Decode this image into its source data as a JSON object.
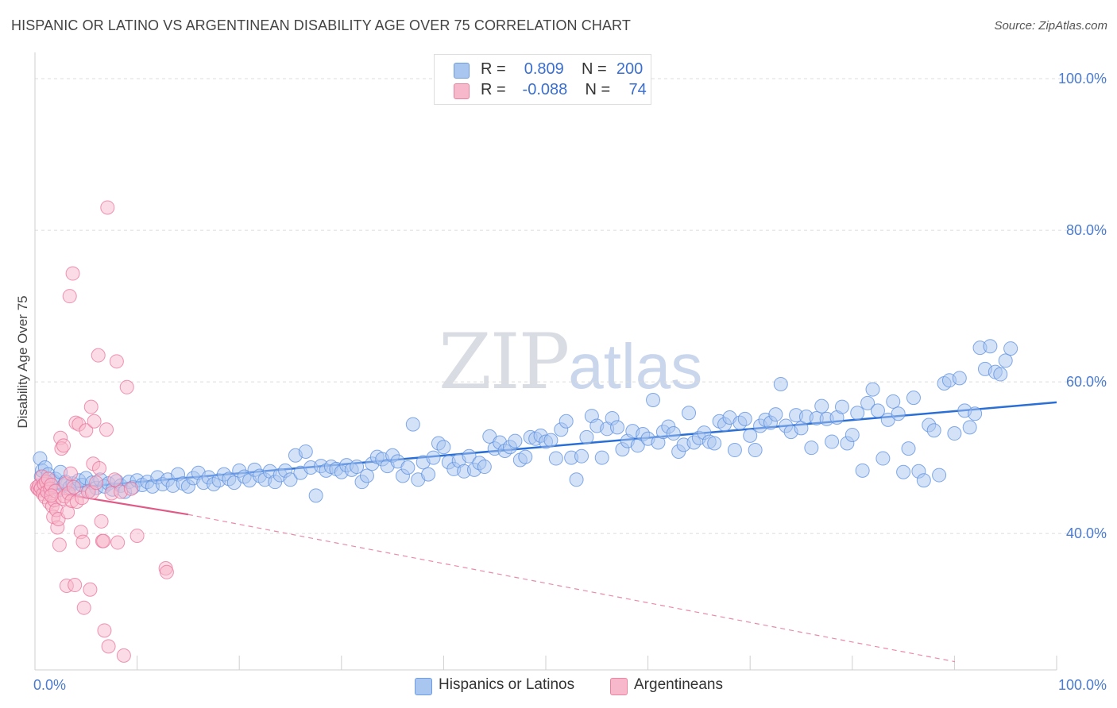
{
  "title": "HISPANIC OR LATINO VS ARGENTINEAN DISABILITY AGE OVER 75 CORRELATION CHART",
  "source": "Source: ZipAtlas.com",
  "watermark": {
    "zip": "ZIP",
    "atlas": "atlas"
  },
  "legend": {
    "rows": [
      {
        "r_label": "R =",
        "r_value": "0.809",
        "n_label": "N =",
        "n_value": "200",
        "color": "#a9c6f0"
      },
      {
        "r_label": "R =",
        "r_value": "-0.088",
        "n_label": "N =",
        "n_value": "74",
        "color": "#f7b8cb"
      }
    ]
  },
  "bottom_legend": [
    {
      "label": "Hispanics or Latinos",
      "color": "#a9c6f0"
    },
    {
      "label": "Argentineans",
      "color": "#f7b8cb"
    }
  ],
  "chart_data": {
    "type": "scatter",
    "xlabel": "",
    "ylabel": "Disability Age Over 75",
    "xlim": [
      0,
      100
    ],
    "ylim": [
      22,
      102
    ],
    "x_tick_labels": [
      "0.0%",
      "100.0%"
    ],
    "y_ticks": [
      40,
      60,
      80,
      100
    ],
    "y_tick_labels": [
      "40.0%",
      "60.0%",
      "80.0%",
      "100.0%"
    ],
    "grid": true,
    "series": [
      {
        "name": "Hispanics or Latinos",
        "color": "#5b8fe0",
        "fill": "#a9c6f0",
        "trend": {
          "x": [
            0,
            100
          ],
          "y": [
            45.6,
            57.3
          ],
          "extrapolated": false
        },
        "points": [
          [
            0.5,
            49.9
          ],
          [
            0.6,
            47.5
          ],
          [
            0.7,
            48.3
          ],
          [
            0.8,
            46.2
          ],
          [
            1.0,
            48.7
          ],
          [
            1.1,
            45.8
          ],
          [
            1.3,
            47.8
          ],
          [
            1.5,
            46.5
          ],
          [
            1.8,
            46.9
          ],
          [
            2.0,
            47.2
          ],
          [
            2.3,
            45.7
          ],
          [
            2.5,
            48.1
          ],
          [
            2.8,
            46.3
          ],
          [
            3.0,
            46.8
          ],
          [
            3.4,
            46.1
          ],
          [
            3.7,
            46.6
          ],
          [
            4.0,
            45.9
          ],
          [
            4.3,
            47.0
          ],
          [
            4.6,
            46.4
          ],
          [
            5.0,
            47.3
          ],
          [
            5.3,
            45.6
          ],
          [
            5.6,
            46.7
          ],
          [
            6.0,
            46.0
          ],
          [
            6.4,
            47.1
          ],
          [
            6.8,
            46.2
          ],
          [
            7.2,
            46.6
          ],
          [
            7.6,
            45.8
          ],
          [
            8.0,
            46.9
          ],
          [
            8.4,
            46.3
          ],
          [
            8.8,
            45.5
          ],
          [
            9.2,
            46.8
          ],
          [
            9.6,
            46.1
          ],
          [
            10.0,
            47.0
          ],
          [
            10.5,
            46.4
          ],
          [
            11.0,
            46.8
          ],
          [
            11.5,
            46.2
          ],
          [
            12.0,
            47.4
          ],
          [
            12.5,
            46.5
          ],
          [
            13.0,
            47.1
          ],
          [
            13.5,
            46.3
          ],
          [
            14.0,
            47.8
          ],
          [
            14.5,
            46.6
          ],
          [
            15.0,
            46.2
          ],
          [
            15.5,
            47.3
          ],
          [
            16.0,
            48.0
          ],
          [
            16.5,
            46.7
          ],
          [
            17.0,
            47.4
          ],
          [
            17.5,
            46.5
          ],
          [
            18.0,
            47.0
          ],
          [
            18.5,
            47.8
          ],
          [
            19.0,
            47.2
          ],
          [
            19.5,
            46.7
          ],
          [
            20.0,
            48.3
          ],
          [
            20.5,
            47.5
          ],
          [
            21.0,
            47.0
          ],
          [
            21.5,
            48.4
          ],
          [
            22.0,
            47.6
          ],
          [
            22.5,
            47.1
          ],
          [
            23.0,
            48.2
          ],
          [
            23.5,
            46.8
          ],
          [
            24.0,
            47.7
          ],
          [
            24.5,
            48.3
          ],
          [
            25.0,
            47.1
          ],
          [
            25.5,
            50.3
          ],
          [
            26.0,
            48.0
          ],
          [
            26.5,
            50.8
          ],
          [
            27.0,
            48.7
          ],
          [
            27.5,
            45.0
          ],
          [
            28.0,
            48.9
          ],
          [
            28.5,
            48.3
          ],
          [
            29.0,
            48.8
          ],
          [
            29.5,
            48.5
          ],
          [
            30.0,
            48.1
          ],
          [
            30.5,
            49.0
          ],
          [
            31.0,
            48.4
          ],
          [
            31.5,
            48.8
          ],
          [
            32.0,
            46.8
          ],
          [
            32.5,
            47.6
          ],
          [
            33.0,
            49.2
          ],
          [
            33.5,
            50.1
          ],
          [
            34.0,
            49.8
          ],
          [
            34.5,
            48.9
          ],
          [
            35.0,
            50.3
          ],
          [
            35.5,
            49.5
          ],
          [
            36.0,
            47.6
          ],
          [
            36.5,
            48.7
          ],
          [
            37.0,
            54.4
          ],
          [
            37.5,
            47.1
          ],
          [
            38.0,
            49.4
          ],
          [
            38.5,
            47.8
          ],
          [
            39.0,
            50.0
          ],
          [
            39.5,
            51.9
          ],
          [
            40.0,
            51.4
          ],
          [
            40.5,
            49.4
          ],
          [
            41.0,
            48.5
          ],
          [
            41.5,
            49.6
          ],
          [
            42.0,
            48.2
          ],
          [
            42.5,
            50.2
          ],
          [
            43.0,
            48.4
          ],
          [
            43.5,
            49.3
          ],
          [
            44.0,
            48.8
          ],
          [
            44.5,
            52.8
          ],
          [
            45.0,
            51.2
          ],
          [
            45.5,
            52.0
          ],
          [
            46.0,
            50.9
          ],
          [
            46.5,
            51.4
          ],
          [
            47.0,
            52.2
          ],
          [
            47.5,
            49.7
          ],
          [
            48.0,
            50.1
          ],
          [
            48.5,
            52.7
          ],
          [
            49.0,
            52.5
          ],
          [
            49.5,
            52.9
          ],
          [
            50.0,
            52.1
          ],
          [
            50.5,
            52.3
          ],
          [
            51.0,
            49.9
          ],
          [
            51.5,
            53.7
          ],
          [
            52.0,
            54.8
          ],
          [
            52.5,
            50.0
          ],
          [
            53.0,
            47.1
          ],
          [
            53.5,
            50.2
          ],
          [
            54.0,
            52.7
          ],
          [
            54.5,
            55.5
          ],
          [
            55.0,
            54.2
          ],
          [
            55.5,
            50.0
          ],
          [
            56.0,
            53.8
          ],
          [
            56.5,
            55.2
          ],
          [
            57.0,
            54.0
          ],
          [
            57.5,
            51.1
          ],
          [
            58.0,
            52.2
          ],
          [
            58.5,
            53.5
          ],
          [
            59.0,
            51.6
          ],
          [
            59.5,
            53.1
          ],
          [
            60.0,
            52.5
          ],
          [
            60.5,
            57.6
          ],
          [
            61.0,
            52.0
          ],
          [
            61.5,
            53.4
          ],
          [
            62.0,
            54.1
          ],
          [
            62.5,
            53.2
          ],
          [
            63.0,
            50.8
          ],
          [
            63.5,
            51.7
          ],
          [
            64.0,
            55.9
          ],
          [
            64.5,
            52.0
          ],
          [
            65.0,
            52.6
          ],
          [
            65.5,
            53.3
          ],
          [
            66.0,
            52.1
          ],
          [
            66.5,
            51.9
          ],
          [
            67.0,
            54.8
          ],
          [
            67.5,
            54.4
          ],
          [
            68.0,
            55.3
          ],
          [
            68.5,
            51.0
          ],
          [
            69.0,
            54.6
          ],
          [
            69.5,
            55.1
          ],
          [
            70.0,
            52.9
          ],
          [
            70.5,
            51.0
          ],
          [
            71.0,
            54.2
          ],
          [
            71.5,
            55.0
          ],
          [
            72.0,
            54.6
          ],
          [
            72.5,
            55.7
          ],
          [
            73.0,
            59.7
          ],
          [
            73.5,
            54.2
          ],
          [
            74.0,
            53.4
          ],
          [
            74.5,
            55.6
          ],
          [
            75.0,
            53.9
          ],
          [
            75.5,
            55.4
          ],
          [
            76.0,
            51.3
          ],
          [
            76.5,
            55.2
          ],
          [
            77.0,
            56.8
          ],
          [
            77.5,
            55.1
          ],
          [
            78.0,
            52.1
          ],
          [
            78.5,
            55.3
          ],
          [
            79.0,
            56.7
          ],
          [
            79.5,
            51.9
          ],
          [
            80.0,
            53.0
          ],
          [
            80.5,
            55.9
          ],
          [
            81.0,
            48.3
          ],
          [
            81.5,
            57.2
          ],
          [
            82.0,
            59.0
          ],
          [
            82.5,
            56.2
          ],
          [
            83.0,
            49.9
          ],
          [
            83.5,
            55.0
          ],
          [
            84.0,
            57.4
          ],
          [
            84.5,
            55.8
          ],
          [
            85.0,
            48.1
          ],
          [
            85.5,
            51.2
          ],
          [
            86.0,
            57.9
          ],
          [
            86.5,
            48.2
          ],
          [
            87.0,
            47.0
          ],
          [
            87.5,
            54.3
          ],
          [
            88.0,
            53.6
          ],
          [
            88.5,
            47.7
          ],
          [
            89.0,
            59.8
          ],
          [
            89.5,
            60.2
          ],
          [
            90.0,
            53.2
          ],
          [
            90.5,
            60.5
          ],
          [
            91.0,
            56.2
          ],
          [
            91.5,
            54.0
          ],
          [
            92.0,
            55.8
          ],
          [
            92.5,
            64.5
          ],
          [
            93.0,
            61.7
          ],
          [
            93.5,
            64.7
          ],
          [
            94.0,
            61.3
          ],
          [
            94.5,
            61.0
          ],
          [
            95.0,
            62.8
          ],
          [
            95.5,
            64.4
          ]
        ]
      },
      {
        "name": "Argentineans",
        "color": "#e8739a",
        "fill": "#f7b8cb",
        "trend": {
          "x": [
            0,
            15,
            100
          ],
          "y": [
            45.8,
            42.5,
            23.5
          ],
          "solid_until": 15
        },
        "points": [
          [
            0.2,
            46.1
          ],
          [
            0.3,
            45.9
          ],
          [
            0.4,
            46.3
          ],
          [
            0.5,
            45.7
          ],
          [
            0.6,
            46.0
          ],
          [
            0.7,
            47.5
          ],
          [
            0.8,
            45.2
          ],
          [
            0.9,
            46.5
          ],
          [
            1.0,
            44.8
          ],
          [
            1.1,
            46.8
          ],
          [
            1.2,
            45.5
          ],
          [
            1.3,
            47.2
          ],
          [
            1.4,
            44.1
          ],
          [
            1.5,
            45.9
          ],
          [
            1.6,
            46.4
          ],
          [
            1.7,
            43.6
          ],
          [
            1.8,
            42.2
          ],
          [
            1.9,
            44.4
          ],
          [
            2.0,
            45.6
          ],
          [
            2.1,
            43.1
          ],
          [
            2.2,
            40.8
          ],
          [
            2.3,
            41.9
          ],
          [
            2.4,
            38.5
          ],
          [
            2.5,
            52.6
          ],
          [
            2.6,
            51.2
          ],
          [
            2.7,
            44.6
          ],
          [
            2.8,
            51.6
          ],
          [
            2.9,
            44.9
          ],
          [
            3.0,
            46.6
          ],
          [
            3.1,
            33.1
          ],
          [
            3.2,
            42.8
          ],
          [
            3.3,
            45.3
          ],
          [
            3.4,
            71.3
          ],
          [
            3.5,
            47.9
          ],
          [
            3.6,
            44.3
          ],
          [
            3.7,
            74.3
          ],
          [
            3.8,
            46.1
          ],
          [
            3.9,
            33.2
          ],
          [
            4.0,
            54.6
          ],
          [
            4.1,
            44.2
          ],
          [
            4.3,
            54.4
          ],
          [
            4.5,
            40.2
          ],
          [
            4.6,
            44.7
          ],
          [
            4.7,
            38.9
          ],
          [
            4.8,
            30.2
          ],
          [
            5.0,
            53.6
          ],
          [
            5.2,
            45.5
          ],
          [
            5.4,
            32.6
          ],
          [
            5.5,
            56.7
          ],
          [
            5.6,
            45.4
          ],
          [
            5.7,
            49.2
          ],
          [
            5.8,
            54.8
          ],
          [
            6.0,
            46.7
          ],
          [
            6.2,
            63.5
          ],
          [
            6.3,
            48.6
          ],
          [
            6.5,
            41.6
          ],
          [
            6.6,
            39.0
          ],
          [
            6.7,
            39.0
          ],
          [
            6.8,
            27.2
          ],
          [
            7.0,
            53.7
          ],
          [
            7.1,
            83.0
          ],
          [
            7.2,
            25.1
          ],
          [
            7.5,
            45.3
          ],
          [
            7.8,
            47.1
          ],
          [
            8.0,
            62.7
          ],
          [
            8.1,
            38.8
          ],
          [
            8.4,
            45.5
          ],
          [
            8.7,
            23.9
          ],
          [
            9.0,
            59.3
          ],
          [
            9.4,
            45.9
          ],
          [
            10.0,
            39.7
          ],
          [
            12.8,
            35.4
          ],
          [
            12.9,
            34.9
          ],
          [
            1.6,
            45.0
          ]
        ]
      }
    ]
  }
}
